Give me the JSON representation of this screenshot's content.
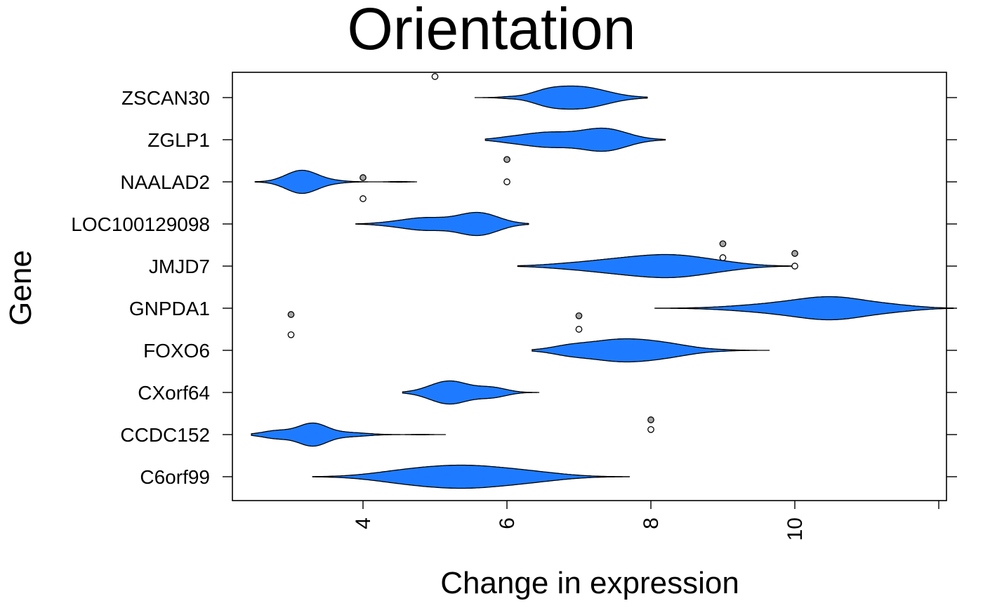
{
  "chart_data": {
    "type": "violin",
    "title": "Orientation",
    "xlabel": "Change in expression",
    "ylabel": "Gene",
    "xlim": [
      2.3,
      12.2
    ],
    "x_ticks": [
      4,
      6,
      8,
      10,
      12
    ],
    "x_tick_labels": [
      "4",
      "6",
      "8",
      "10",
      ""
    ],
    "fill_color": "#1E7BFF",
    "outline_color": "#000000",
    "outlier_fill_dark": "#A6A6A6",
    "outlier_fill_light": "#FFFFFF",
    "genes": [
      {
        "name": "ZSCAN30",
        "range": [
          5.55,
          7.95
        ],
        "peaks": [
          [
            6.0,
            0.05,
            0.12
          ],
          [
            7.0,
            1.0,
            0.38
          ],
          [
            6.55,
            0.35,
            0.22
          ]
        ]
      },
      {
        "name": "ZGLP1",
        "range": [
          5.7,
          8.2
        ],
        "peaks": [
          [
            6.55,
            0.65,
            0.35
          ],
          [
            7.35,
            1.0,
            0.32
          ],
          [
            6.0,
            0.1,
            0.2
          ]
        ]
      },
      {
        "name": "NAALAD2",
        "range": [
          2.5,
          4.75
        ],
        "peaks": [
          [
            3.15,
            1.0,
            0.22
          ],
          [
            3.6,
            0.08,
            0.18
          ],
          [
            4.5,
            0.03,
            0.1
          ]
        ]
      },
      {
        "name": "LOC100129098",
        "range": [
          3.9,
          6.3
        ],
        "peaks": [
          [
            4.85,
            0.55,
            0.32
          ],
          [
            5.6,
            1.0,
            0.28
          ],
          [
            4.3,
            0.05,
            0.2
          ]
        ]
      },
      {
        "name": "JMJD7",
        "range": [
          6.15,
          9.95
        ],
        "peaks": [
          [
            7.5,
            0.6,
            0.55
          ],
          [
            8.35,
            1.0,
            0.5
          ],
          [
            9.1,
            0.15,
            0.35
          ],
          [
            6.7,
            0.05,
            0.3
          ]
        ]
      },
      {
        "name": "GNPDA1",
        "range": [
          8.05,
          12.2
        ],
        "peaks": [
          [
            9.3,
            0.15,
            0.45
          ],
          [
            10.0,
            0.5,
            0.5
          ],
          [
            10.6,
            1.0,
            0.45
          ],
          [
            11.4,
            0.25,
            0.35
          ]
        ]
      },
      {
        "name": "FOXO6",
        "range": [
          6.35,
          9.65
        ],
        "peaks": [
          [
            7.6,
            1.0,
            0.48
          ],
          [
            8.3,
            0.3,
            0.35
          ],
          [
            6.85,
            0.25,
            0.25
          ],
          [
            9.0,
            0.03,
            0.2
          ]
        ]
      },
      {
        "name": "CXorf64",
        "range": [
          4.55,
          6.45
        ],
        "peaks": [
          [
            5.2,
            1.0,
            0.27
          ],
          [
            5.8,
            0.4,
            0.2
          ]
        ]
      },
      {
        "name": "CCDC152",
        "range": [
          2.45,
          5.15
        ],
        "peaks": [
          [
            3.3,
            1.0,
            0.2
          ],
          [
            2.8,
            0.35,
            0.2
          ],
          [
            3.8,
            0.18,
            0.25
          ],
          [
            4.8,
            0.02,
            0.1
          ]
        ]
      },
      {
        "name": "C6orf99",
        "range": [
          3.3,
          7.7
        ],
        "peaks": [
          [
            5.4,
            1.0,
            0.65
          ],
          [
            4.5,
            0.25,
            0.45
          ],
          [
            6.4,
            0.22,
            0.45
          ]
        ]
      }
    ],
    "outliers": [
      {
        "x": 5.0,
        "y": 10.5,
        "fill": "light"
      },
      {
        "x": 6.0,
        "y": 8.53,
        "fill": "dark"
      },
      {
        "x": 6.0,
        "y": 8.0,
        "fill": "light"
      },
      {
        "x": 4.0,
        "y": 8.1,
        "fill": "dark"
      },
      {
        "x": 4.0,
        "y": 7.6,
        "fill": "light"
      },
      {
        "x": 9.0,
        "y": 6.53,
        "fill": "dark"
      },
      {
        "x": 9.0,
        "y": 6.2,
        "fill": "light"
      },
      {
        "x": 10.0,
        "y": 6.3,
        "fill": "dark"
      },
      {
        "x": 10.0,
        "y": 6.0,
        "fill": "light"
      },
      {
        "x": 3.0,
        "y": 4.85,
        "fill": "dark"
      },
      {
        "x": 3.0,
        "y": 4.37,
        "fill": "light"
      },
      {
        "x": 7.0,
        "y": 4.82,
        "fill": "dark"
      },
      {
        "x": 7.0,
        "y": 4.5,
        "fill": "light"
      },
      {
        "x": 8.0,
        "y": 2.35,
        "fill": "dark"
      },
      {
        "x": 8.0,
        "y": 2.12,
        "fill": "light"
      }
    ]
  }
}
